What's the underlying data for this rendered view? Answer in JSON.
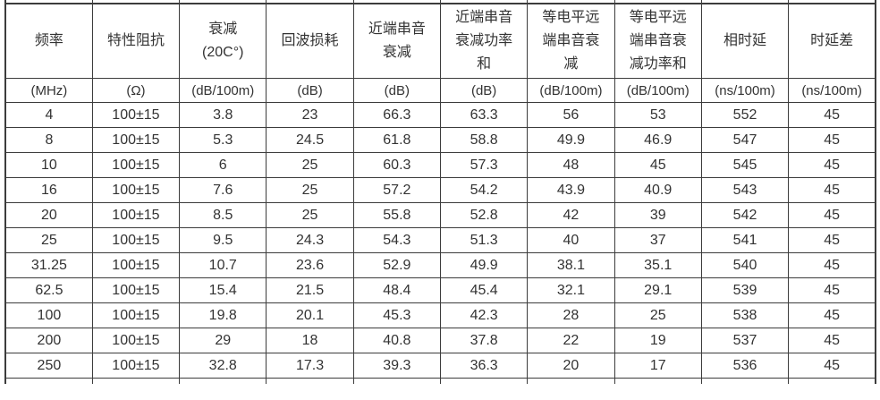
{
  "colors": {
    "background": "#ffffff",
    "border": "#3c3c3c",
    "text": "#333333"
  },
  "table": {
    "columns": [
      {
        "lines": [
          "频率"
        ],
        "unit": "(MHz)"
      },
      {
        "lines": [
          "特性阻抗"
        ],
        "unit": "(Ω)"
      },
      {
        "lines": [
          "衰减",
          "(20C°)"
        ],
        "unit": "(dB/100m)"
      },
      {
        "lines": [
          "回波损耗"
        ],
        "unit": "(dB)"
      },
      {
        "lines": [
          "近端串音",
          "衰减"
        ],
        "unit": "(dB)"
      },
      {
        "lines": [
          "近端串音",
          "衰减功率",
          "和"
        ],
        "unit": "(dB)"
      },
      {
        "lines": [
          "等电平远",
          "端串音衰",
          "减"
        ],
        "unit": "(dB/100m)"
      },
      {
        "lines": [
          "等电平远",
          "端串音衰",
          "减功率和"
        ],
        "unit": "(dB/100m)"
      },
      {
        "lines": [
          "相时延"
        ],
        "unit": "(ns/100m)"
      },
      {
        "lines": [
          "时延差"
        ],
        "unit": "(ns/100m)"
      }
    ],
    "rows": [
      [
        "4",
        "100±15",
        "3.8",
        "23",
        "66.3",
        "63.3",
        "56",
        "53",
        "552",
        "45"
      ],
      [
        "8",
        "100±15",
        "5.3",
        "24.5",
        "61.8",
        "58.8",
        "49.9",
        "46.9",
        "547",
        "45"
      ],
      [
        "10",
        "100±15",
        "6",
        "25",
        "60.3",
        "57.3",
        "48",
        "45",
        "545",
        "45"
      ],
      [
        "16",
        "100±15",
        "7.6",
        "25",
        "57.2",
        "54.2",
        "43.9",
        "40.9",
        "543",
        "45"
      ],
      [
        "20",
        "100±15",
        "8.5",
        "25",
        "55.8",
        "52.8",
        "42",
        "39",
        "542",
        "45"
      ],
      [
        "25",
        "100±15",
        "9.5",
        "24.3",
        "54.3",
        "51.3",
        "40",
        "37",
        "541",
        "45"
      ],
      [
        "31.25",
        "100±15",
        "10.7",
        "23.6",
        "52.9",
        "49.9",
        "38.1",
        "35.1",
        "540",
        "45"
      ],
      [
        "62.5",
        "100±15",
        "15.4",
        "21.5",
        "48.4",
        "45.4",
        "32.1",
        "29.1",
        "539",
        "45"
      ],
      [
        "100",
        "100±15",
        "19.8",
        "20.1",
        "45.3",
        "42.3",
        "28",
        "25",
        "538",
        "45"
      ],
      [
        "200",
        "100±15",
        "29",
        "18",
        "40.8",
        "37.8",
        "22",
        "19",
        "537",
        "45"
      ],
      [
        "250",
        "100±15",
        "32.8",
        "17.3",
        "39.3",
        "36.3",
        "20",
        "17",
        "536",
        "45"
      ]
    ]
  }
}
